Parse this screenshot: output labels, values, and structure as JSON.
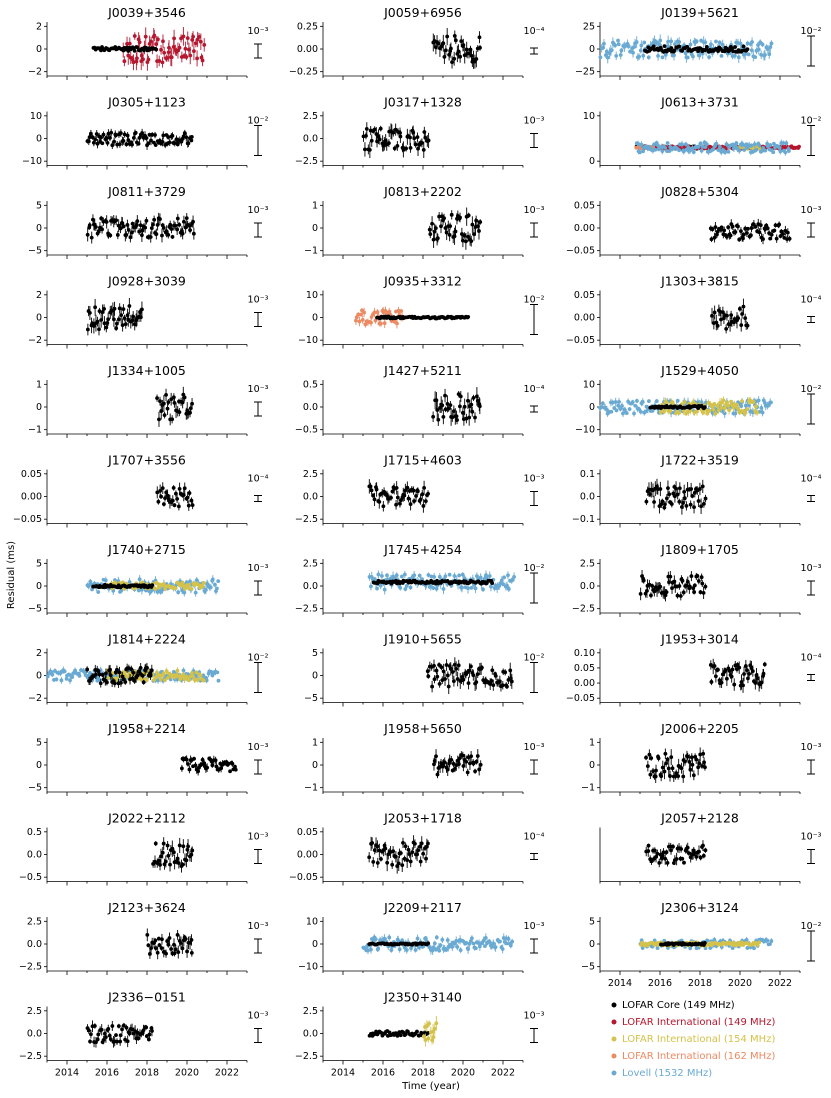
{
  "figure": {
    "xlabel": "Time (year)",
    "ylabel": "Residual (ms)",
    "x_ticks": [
      "2014",
      "2016",
      "2018",
      "2020",
      "2022"
    ]
  },
  "legend": [
    {
      "label": "LOFAR Core (149 MHz)",
      "color": "#000000"
    },
    {
      "label": "LOFAR International (149 MHz)",
      "color": "#b5172f"
    },
    {
      "label": "LOFAR International (154 MHz)",
      "color": "#d4c24a"
    },
    {
      "label": "LOFAR International (162 MHz)",
      "color": "#ec8a63"
    },
    {
      "label": "Lovell (1532 MHz)",
      "color": "#6aaad2"
    }
  ],
  "chart_data": [
    {
      "type": "scatter",
      "title": "J0039+3546",
      "ylim": [
        -2,
        2
      ],
      "yticks": [
        "2",
        "0",
        "−2"
      ],
      "scale": "10⁻³",
      "series": [
        {
          "name": "LOFAR International (149 MHz)",
          "x_range": [
            2016.8,
            2020.9
          ],
          "amplitude": 1.0
        },
        {
          "name": "LOFAR Core (149 MHz)",
          "x_range": [
            2015.3,
            2018.5
          ],
          "amplitude": 0.15
        }
      ]
    },
    {
      "type": "scatter",
      "title": "J0059+6956",
      "ylim": [
        -0.4,
        0.4
      ],
      "yticks": [
        "0.25",
        "0.00",
        "−0.25"
      ],
      "scale": "10⁻⁴",
      "series": [
        {
          "name": "LOFAR Core (149 MHz)",
          "x_range": [
            2018.5,
            2020.9
          ],
          "amplitude": 0.2
        }
      ]
    },
    {
      "type": "scatter",
      "title": "J0139+5621",
      "ylim": [
        -28,
        28
      ],
      "yticks": [
        "25",
        "0",
        "−25"
      ],
      "scale": "10⁻²",
      "series": [
        {
          "name": "Lovell (1532 MHz)",
          "x_range": [
            2013.0,
            2021.6
          ],
          "amplitude": 9
        },
        {
          "name": "LOFAR Core (149 MHz)",
          "x_range": [
            2015.2,
            2020.4
          ],
          "amplitude": 3
        }
      ]
    },
    {
      "type": "scatter",
      "title": "J0305+1123",
      "ylim": [
        -12,
        12
      ],
      "yticks": [
        "10",
        "0",
        "−10"
      ],
      "scale": "10⁻²",
      "series": [
        {
          "name": "LOFAR Core (149 MHz)",
          "x_range": [
            2015.0,
            2020.3
          ],
          "amplitude": 3
        }
      ]
    },
    {
      "type": "scatter",
      "title": "J0317+1328",
      "ylim": [
        -3,
        3
      ],
      "yticks": [
        "2.5",
        "0.0",
        "−2.5"
      ],
      "scale": "10⁻³",
      "series": [
        {
          "name": "LOFAR Core (149 MHz)",
          "x_range": [
            2015.0,
            2018.3
          ],
          "amplitude": 1.3
        }
      ]
    },
    {
      "type": "scatter",
      "title": "J0613+3731",
      "ylim": [
        -7,
        14
      ],
      "yticks": [
        "10",
        "0"
      ],
      "scale": "10⁻²",
      "series": [
        {
          "name": "LOFAR Core (149 MHz)",
          "x_range": [
            2014.8,
            2021.0
          ],
          "amplitude": 0.5
        },
        {
          "name": "LOFAR International (149 MHz)",
          "x_range": [
            2015.5,
            2023.0
          ],
          "amplitude": 0.5
        },
        {
          "name": "LOFAR International (154 MHz)",
          "x_range": [
            2020.0,
            2021.0
          ],
          "amplitude": 0.5
        },
        {
          "name": "LOFAR International (162 MHz)",
          "x_range": [
            2014.8,
            2015.7
          ],
          "amplitude": 0.5
        },
        {
          "name": "Lovell (1532 MHz)",
          "x_range": [
            2014.8,
            2022.5
          ],
          "amplitude": 2
        }
      ]
    },
    {
      "type": "scatter",
      "title": "J0811+3729",
      "ylim": [
        -6,
        6
      ],
      "yticks": [
        "5",
        "0",
        "−5"
      ],
      "scale": "10⁻³",
      "series": [
        {
          "name": "LOFAR Core (149 MHz)",
          "x_range": [
            2015.0,
            2020.4
          ],
          "amplitude": 2.2
        }
      ]
    },
    {
      "type": "scatter",
      "title": "J0813+2202",
      "ylim": [
        -1.2,
        1.2
      ],
      "yticks": [
        "1",
        "0",
        "−1"
      ],
      "scale": "10⁻³",
      "series": [
        {
          "name": "LOFAR Core (149 MHz)",
          "x_range": [
            2018.3,
            2020.9
          ],
          "amplitude": 0.6
        }
      ]
    },
    {
      "type": "scatter",
      "title": "J0828+5304",
      "ylim": [
        -0.06,
        0.08
      ],
      "yticks": [
        "0.05",
        "0.00",
        "−0.05"
      ],
      "scale": "10⁻³",
      "series": [
        {
          "name": "LOFAR Core (149 MHz)",
          "x_range": [
            2018.5,
            2022.5
          ],
          "amplitude": 0.02
        }
      ]
    },
    {
      "type": "scatter",
      "title": "J0928+3039",
      "ylim": [
        -2,
        2
      ],
      "yticks": [
        "2",
        "0",
        "−2"
      ],
      "scale": "10⁻³",
      "series": [
        {
          "name": "LOFAR Core (149 MHz)",
          "x_range": [
            2015.0,
            2017.8
          ],
          "amplitude": 0.9
        }
      ]
    },
    {
      "type": "scatter",
      "title": "J0935+3312",
      "ylim": [
        -11,
        11
      ],
      "yticks": [
        "10",
        "0",
        "−10"
      ],
      "scale": "10⁻²",
      "series": [
        {
          "name": "LOFAR International (162 MHz)",
          "x_range": [
            2014.6,
            2017.0
          ],
          "amplitude": 3
        },
        {
          "name": "LOFAR Core (149 MHz)",
          "x_range": [
            2015.7,
            2020.3
          ],
          "amplitude": 0.4
        }
      ]
    },
    {
      "type": "scatter",
      "title": "J1303+3815",
      "ylim": [
        -0.07,
        0.07
      ],
      "yticks": [
        "0.05",
        "0.00",
        "−0.05"
      ],
      "scale": "10⁻⁴",
      "series": [
        {
          "name": "LOFAR Core (149 MHz)",
          "x_range": [
            2018.6,
            2020.4
          ],
          "amplitude": 0.03
        }
      ]
    },
    {
      "type": "scatter",
      "title": "J1334+1005",
      "ylim": [
        -1.3,
        1.3
      ],
      "yticks": [
        "1",
        "0",
        "−1"
      ],
      "scale": "10⁻³",
      "series": [
        {
          "name": "LOFAR Core (149 MHz)",
          "x_range": [
            2018.5,
            2020.3
          ],
          "amplitude": 0.6
        }
      ]
    },
    {
      "type": "scatter",
      "title": "J1427+5211",
      "ylim": [
        -0.6,
        0.6
      ],
      "yticks": [
        "0.5",
        "0.0",
        "−0.5"
      ],
      "scale": "10⁻⁴",
      "series": [
        {
          "name": "LOFAR Core (149 MHz)",
          "x_range": [
            2018.5,
            2020.9
          ],
          "amplitude": 0.3
        }
      ]
    },
    {
      "type": "scatter",
      "title": "J1529+4050",
      "ylim": [
        -12,
        12
      ],
      "yticks": [
        "10",
        "0",
        "−10"
      ],
      "scale": "10⁻²",
      "series": [
        {
          "name": "Lovell (1532 MHz)",
          "x_range": [
            2013.0,
            2021.6
          ],
          "amplitude": 3
        },
        {
          "name": "LOFAR International (154 MHz)",
          "x_range": [
            2016.0,
            2020.9
          ],
          "amplitude": 3
        },
        {
          "name": "LOFAR Core (149 MHz)",
          "x_range": [
            2015.5,
            2018.3
          ],
          "amplitude": 0.6
        }
      ]
    },
    {
      "type": "scatter",
      "title": "J1707+3556",
      "ylim": [
        -0.08,
        0.08
      ],
      "yticks": [
        "0.05",
        "0.00",
        "−0.05"
      ],
      "scale": "10⁻⁴",
      "series": [
        {
          "name": "LOFAR Core (149 MHz)",
          "x_range": [
            2018.5,
            2020.3
          ],
          "amplitude": 0.03
        }
      ]
    },
    {
      "type": "scatter",
      "title": "J1715+4603",
      "ylim": [
        -2.6,
        2.6
      ],
      "yticks": [
        "2.5",
        "0.0",
        "−2.5"
      ],
      "scale": "10⁻³",
      "series": [
        {
          "name": "LOFAR Core (149 MHz)",
          "x_range": [
            2015.3,
            2018.3
          ],
          "amplitude": 1.0
        }
      ]
    },
    {
      "type": "scatter",
      "title": "J1722+3519",
      "ylim": [
        -0.12,
        0.12
      ],
      "yticks": [
        "0.1",
        "0.0",
        "−0.1"
      ],
      "scale": "10⁻⁴",
      "series": [
        {
          "name": "LOFAR Core (149 MHz)",
          "x_range": [
            2015.3,
            2018.3
          ],
          "amplitude": 0.05
        }
      ]
    },
    {
      "type": "scatter",
      "title": "J1740+2715",
      "ylim": [
        -6,
        6
      ],
      "yticks": [
        "5",
        "0",
        "−5"
      ],
      "scale": "10⁻³",
      "series": [
        {
          "name": "Lovell (1532 MHz)",
          "x_range": [
            2015.0,
            2021.6
          ],
          "amplitude": 1.5
        },
        {
          "name": "LOFAR International (154 MHz)",
          "x_range": [
            2016.0,
            2020.9
          ],
          "amplitude": 0.8
        },
        {
          "name": "LOFAR Core (149 MHz)",
          "x_range": [
            2015.3,
            2018.3
          ],
          "amplitude": 0.3
        }
      ]
    },
    {
      "type": "scatter",
      "title": "J1745+4254",
      "ylim": [
        -4,
        3
      ],
      "yticks": [
        "2.5",
        "0.0",
        "−2.5"
      ],
      "scale": "10⁻²",
      "series": [
        {
          "name": "Lovell (1532 MHz)",
          "x_range": [
            2015.3,
            2022.6
          ],
          "amplitude": 1.0
        },
        {
          "name": "LOFAR Core (149 MHz)",
          "x_range": [
            2015.5,
            2021.5
          ],
          "amplitude": 0.2
        }
      ]
    },
    {
      "type": "scatter",
      "title": "J1809+1705",
      "ylim": [
        -2.6,
        2.6
      ],
      "yticks": [
        "2.5",
        "0.0",
        "−2.5"
      ],
      "scale": "10⁻³",
      "series": [
        {
          "name": "LOFAR Core (149 MHz)",
          "x_range": [
            2015.0,
            2018.3
          ],
          "amplitude": 1.0
        }
      ]
    },
    {
      "type": "scatter",
      "title": "J1814+2224",
      "ylim": [
        -2,
        2
      ],
      "yticks": [
        "2",
        "0",
        "−2"
      ],
      "scale": "10⁻²",
      "series": [
        {
          "name": "Lovell (1532 MHz)",
          "x_range": [
            2013.0,
            2021.6
          ],
          "amplitude": 0.4
        },
        {
          "name": "LOFAR International (154 MHz)",
          "x_range": [
            2016.0,
            2020.9
          ],
          "amplitude": 0.4
        },
        {
          "name": "LOFAR Core (149 MHz)",
          "x_range": [
            2015.0,
            2018.3
          ],
          "amplitude": 0.6
        }
      ]
    },
    {
      "type": "scatter",
      "title": "J1910+5655",
      "ylim": [
        -7,
        7
      ],
      "yticks": [
        "5",
        "0",
        "−5"
      ],
      "scale": "10⁻²",
      "series": [
        {
          "name": "LOFAR Core (149 MHz)",
          "x_range": [
            2018.2,
            2022.5
          ],
          "amplitude": 3
        }
      ]
    },
    {
      "type": "scatter",
      "title": "J1953+3014",
      "ylim": [
        -0.12,
        0.12
      ],
      "yticks": [
        "0.10",
        "0.05",
        "0.00",
        "−0.05"
      ],
      "scale": "10⁻⁴",
      "series": [
        {
          "name": "LOFAR Core (149 MHz)",
          "x_range": [
            2018.5,
            2021.3
          ],
          "amplitude": 0.05
        }
      ]
    },
    {
      "type": "scatter",
      "title": "J1958+2214",
      "ylim": [
        -6,
        6
      ],
      "yticks": [
        "5",
        "0",
        "−5"
      ],
      "scale": "10⁻³",
      "series": [
        {
          "name": "LOFAR Core (149 MHz)",
          "x_range": [
            2019.7,
            2022.5
          ],
          "amplitude": 1.5
        }
      ]
    },
    {
      "type": "scatter",
      "title": "J1958+5650",
      "ylim": [
        -1.6,
        1.6
      ],
      "yticks": [
        "1",
        "0",
        "−1"
      ],
      "scale": "10⁻³",
      "series": [
        {
          "name": "LOFAR Core (149 MHz)",
          "x_range": [
            2018.5,
            2020.9
          ],
          "amplitude": 0.6
        }
      ]
    },
    {
      "type": "scatter",
      "title": "J2006+2205",
      "ylim": [
        -1.4,
        1.4
      ],
      "yticks": [
        "1",
        "0",
        "−1"
      ],
      "scale": "10⁻³",
      "series": [
        {
          "name": "LOFAR Core (149 MHz)",
          "x_range": [
            2015.3,
            2018.3
          ],
          "amplitude": 0.6
        }
      ]
    },
    {
      "type": "scatter",
      "title": "J2022+2112",
      "ylim": [
        -0.8,
        0.8
      ],
      "yticks": [
        "0.5",
        "0.0",
        "−0.5"
      ],
      "scale": "10⁻³",
      "series": [
        {
          "name": "LOFAR Core (149 MHz)",
          "x_range": [
            2018.3,
            2020.3
          ],
          "amplitude": 0.35
        }
      ]
    },
    {
      "type": "scatter",
      "title": "J2053+1718",
      "ylim": [
        -0.09,
        0.09
      ],
      "yticks": [
        "0.05",
        "0.00",
        "−0.05"
      ],
      "scale": "10⁻⁴",
      "series": [
        {
          "name": "LOFAR Core (149 MHz)",
          "x_range": [
            2015.3,
            2018.3
          ],
          "amplitude": 0.04
        }
      ]
    },
    {
      "type": "scatter",
      "title": "J2057+2128",
      "ylim": [
        -6,
        6
      ],
      "yticks": [],
      "scale": "10⁻³",
      "series": [
        {
          "name": "LOFAR Core (149 MHz)",
          "x_range": [
            2015.3,
            2018.3
          ],
          "amplitude": 2
        }
      ]
    },
    {
      "type": "scatter",
      "title": "J2123+3624",
      "ylim": [
        -4,
        4
      ],
      "yticks": [
        "2.5",
        "0.0",
        "−2.5"
      ],
      "scale": "10⁻³",
      "series": [
        {
          "name": "LOFAR Core (149 MHz)",
          "x_range": [
            2018.0,
            2020.3
          ],
          "amplitude": 1.5
        }
      ]
    },
    {
      "type": "scatter",
      "title": "J2209+2117",
      "ylim": [
        -10,
        10
      ],
      "yticks": [
        "10",
        "0",
        "−10"
      ],
      "scale": "10⁻³",
      "series": [
        {
          "name": "Lovell (1532 MHz)",
          "x_range": [
            2015.0,
            2022.5
          ],
          "amplitude": 2.5
        },
        {
          "name": "LOFAR Core (149 MHz)",
          "x_range": [
            2015.3,
            2018.3
          ],
          "amplitude": 0.3
        }
      ]
    },
    {
      "type": "scatter",
      "title": "J2306+3124",
      "ylim": [
        -5,
        5
      ],
      "yticks": [
        "5",
        "0",
        "−5"
      ],
      "scale": "10⁻²",
      "series": [
        {
          "name": "Lovell (1532 MHz)",
          "x_range": [
            2015.0,
            2021.6
          ],
          "amplitude": 0.8
        },
        {
          "name": "LOFAR International (154 MHz)",
          "x_range": [
            2015.0,
            2021.0
          ],
          "amplitude": 0.3
        },
        {
          "name": "LOFAR Core (149 MHz)",
          "x_range": [
            2016.0,
            2018.3
          ],
          "amplitude": 0.2
        }
      ]
    },
    {
      "type": "scatter",
      "title": "J2336−0151",
      "ylim": [
        -3,
        3
      ],
      "yticks": [
        "2.5",
        "0.0",
        "−2.5"
      ],
      "scale": "10⁻³",
      "series": [
        {
          "name": "LOFAR Core (149 MHz)",
          "x_range": [
            2015.0,
            2018.3
          ],
          "amplitude": 1.0
        }
      ]
    },
    {
      "type": "scatter",
      "title": "J2350+3140",
      "ylim": [
        -3,
        3
      ],
      "yticks": [
        "2.5",
        "0.0",
        "−2.5"
      ],
      "scale": "10⁻³",
      "series": [
        {
          "name": "LOFAR Core (149 MHz)",
          "x_range": [
            2015.3,
            2018.3
          ],
          "amplitude": 0.3
        },
        {
          "name": "LOFAR International (154 MHz)",
          "x_range": [
            2018.0,
            2018.7
          ],
          "amplitude": 1.2
        }
      ]
    }
  ]
}
